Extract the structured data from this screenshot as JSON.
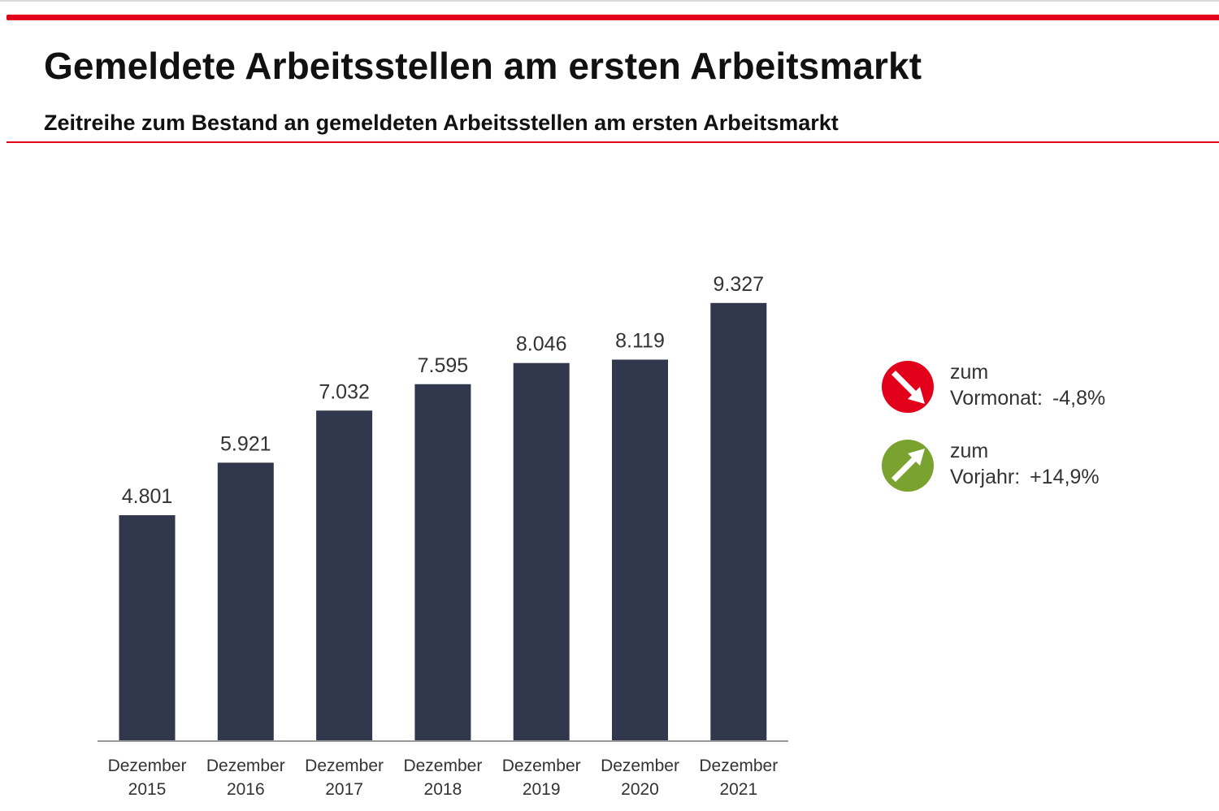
{
  "page": {
    "title": "Gemeldete Arbeitsstellen am ersten Arbeitsmarkt",
    "subtitle": "Zeitreihe zum Bestand an gemeldeten Arbeitsstellen am ersten Arbeitsmarkt"
  },
  "colors": {
    "accent_red": "#e2001a",
    "bar": "#31374d",
    "down_indicator": "#e2001a",
    "up_indicator": "#7aa22e"
  },
  "legend": {
    "month": {
      "icon": "arrow-down-right-icon",
      "line1": "zum",
      "label": "Vormonat:",
      "value": "-4,8%"
    },
    "year": {
      "icon": "arrow-up-right-icon",
      "line1": "zum",
      "label": "Vorjahr:",
      "value": "+14,9%"
    }
  },
  "chart_data": {
    "type": "bar",
    "categories": [
      [
        "Dezember",
        "2015"
      ],
      [
        "Dezember",
        "2016"
      ],
      [
        "Dezember",
        "2017"
      ],
      [
        "Dezember",
        "2018"
      ],
      [
        "Dezember",
        "2019"
      ],
      [
        "Dezember",
        "2020"
      ],
      [
        "Dezember",
        "2021"
      ]
    ],
    "values": [
      4801,
      5921,
      7032,
      7595,
      8046,
      8119,
      9327
    ],
    "data_labels": [
      "4.801",
      "5.921",
      "7.032",
      "7.595",
      "8.046",
      "8.119",
      "9.327"
    ],
    "ylim": [
      0,
      10000
    ],
    "grid": false,
    "legend": "none"
  }
}
